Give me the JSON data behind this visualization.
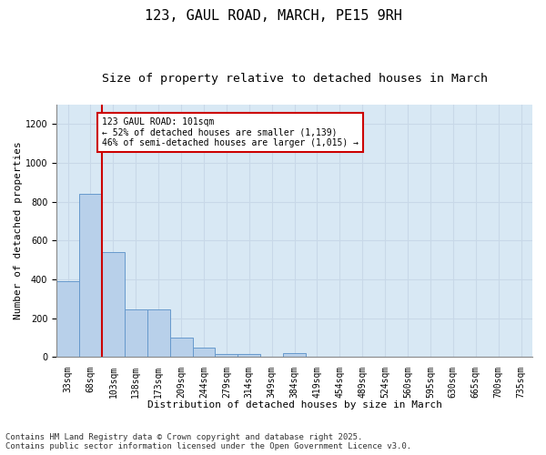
{
  "title1": "123, GAUL ROAD, MARCH, PE15 9RH",
  "title2": "Size of property relative to detached houses in March",
  "xlabel": "Distribution of detached houses by size in March",
  "ylabel": "Number of detached properties",
  "bin_labels": [
    "33sqm",
    "68sqm",
    "103sqm",
    "138sqm",
    "173sqm",
    "209sqm",
    "244sqm",
    "279sqm",
    "314sqm",
    "349sqm",
    "384sqm",
    "419sqm",
    "454sqm",
    "489sqm",
    "524sqm",
    "560sqm",
    "595sqm",
    "630sqm",
    "665sqm",
    "700sqm",
    "735sqm"
  ],
  "bar_heights": [
    390,
    840,
    540,
    245,
    245,
    100,
    48,
    15,
    15,
    0,
    20,
    0,
    0,
    0,
    0,
    0,
    0,
    0,
    0,
    0,
    0
  ],
  "bar_color": "#b8d0ea",
  "bar_edge_color": "#6699cc",
  "vline_color": "#cc0000",
  "vline_x_idx": 1.5,
  "annotation_text": "123 GAUL ROAD: 101sqm\n← 52% of detached houses are smaller (1,139)\n46% of semi-detached houses are larger (1,015) →",
  "annotation_box_color": "#ffffff",
  "annotation_box_edge": "#cc0000",
  "ylim": [
    0,
    1300
  ],
  "yticks": [
    0,
    200,
    400,
    600,
    800,
    1000,
    1200
  ],
  "grid_color": "#c8d8e8",
  "bg_color": "#d8e8f4",
  "footnote": "Contains HM Land Registry data © Crown copyright and database right 2025.\nContains public sector information licensed under the Open Government Licence v3.0.",
  "title_fontsize": 11,
  "subtitle_fontsize": 9.5,
  "label_fontsize": 8,
  "tick_fontsize": 7,
  "annotation_fontsize": 7,
  "footnote_fontsize": 6.5
}
